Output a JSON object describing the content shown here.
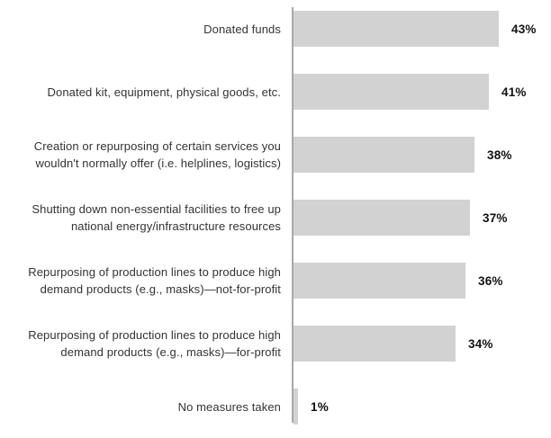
{
  "chart_data": {
    "type": "bar",
    "orientation": "horizontal",
    "title": "",
    "xlabel": "",
    "ylabel": "",
    "grid": false,
    "legend": null,
    "xlim": [
      0,
      45
    ],
    "background": "#ffffff",
    "bar_color": "#d2d2d2",
    "axis_line_color": "#a9a9a9",
    "category_label_color": "#333333",
    "value_label_color": "#111111",
    "categories": [
      "Donated funds",
      "Donated kit, equipment, physical goods, etc.",
      "Creation or repurposing of certain services you wouldn't normally offer (i.e. helplines, logistics)",
      "Shutting down non-essential facilities to free up national energy/infrastructure resources",
      "Repurposing of production lines to produce high demand products (e.g., masks)—not-for-profit",
      "Repurposing of production lines to produce high demand products (e.g., masks)—for-profit",
      "No measures taken"
    ],
    "category_lines": [
      [
        "Donated funds"
      ],
      [
        "Donated kit, equipment, physical goods, etc."
      ],
      [
        "Creation or repurposing of certain services you",
        "wouldn't normally offer (i.e. helplines, logistics)"
      ],
      [
        "Shutting down non-essential facilities to free up",
        "national energy/infrastructure resources"
      ],
      [
        "Repurposing of production lines to produce high",
        "demand products (e.g., masks)—not-for-profit"
      ],
      [
        "Repurposing of production lines to produce high",
        "demand products (e.g., masks)—for-profit"
      ],
      [
        "No measures taken"
      ]
    ],
    "values": [
      43,
      41,
      38,
      37,
      36,
      34,
      1
    ],
    "value_labels": [
      "43%",
      "41%",
      "38%",
      "37%",
      "36%",
      "34%",
      "1%"
    ]
  }
}
